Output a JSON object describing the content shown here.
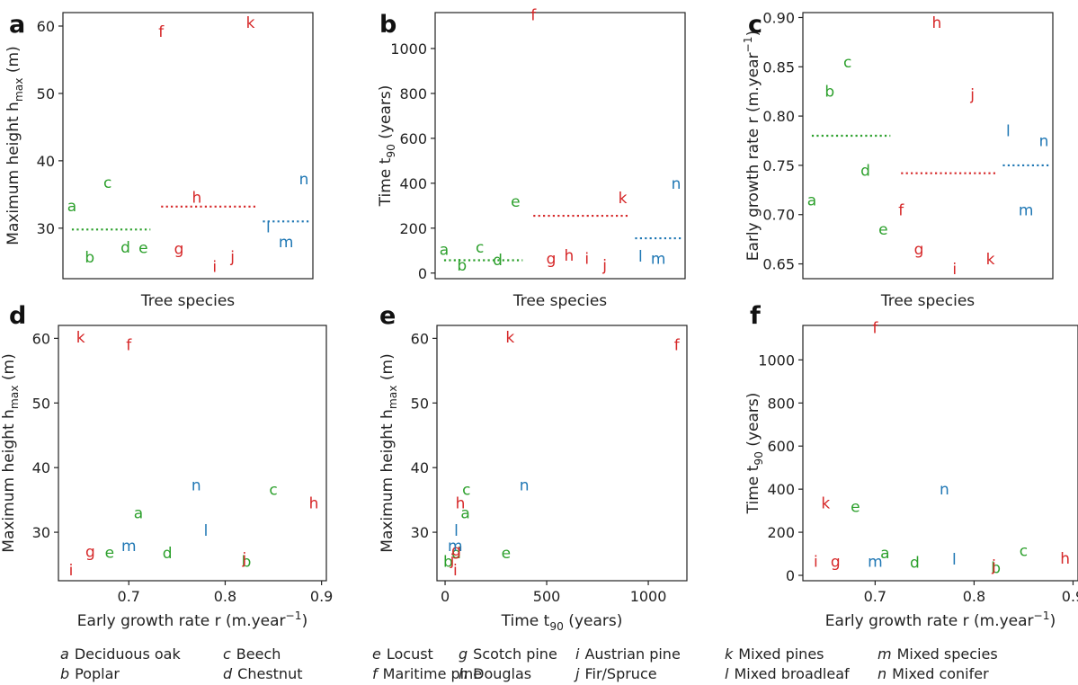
{
  "colors": {
    "broadleaf": "#2ca02c",
    "conifer": "#d62728",
    "mixed": "#1f77b4"
  },
  "species_groups": {
    "a": "broadleaf",
    "b": "broadleaf",
    "c": "broadleaf",
    "d": "broadleaf",
    "e": "broadleaf",
    "f": "conifer",
    "g": "conifer",
    "h": "conifer",
    "i": "conifer",
    "j": "conifer",
    "k": "conifer",
    "l": "mixed",
    "m": "mixed",
    "n": "mixed"
  },
  "legend": [
    {
      "letter": "a",
      "name": "Deciduous oak"
    },
    {
      "letter": "b",
      "name": "Poplar"
    },
    {
      "letter": "c",
      "name": "Beech"
    },
    {
      "letter": "d",
      "name": "Chestnut"
    },
    {
      "letter": "e",
      "name": "Locust"
    },
    {
      "letter": "f",
      "name": "Maritime pine"
    },
    {
      "letter": "g",
      "name": "Scotch pine"
    },
    {
      "letter": "h",
      "name": "Douglas"
    },
    {
      "letter": "i",
      "name": "Austrian pine"
    },
    {
      "letter": "j",
      "name": "Fir/Spruce"
    },
    {
      "letter": "k",
      "name": "Mixed pines"
    },
    {
      "letter": "l",
      "name": "Mixed broadleaf"
    },
    {
      "letter": "m",
      "name": "Mixed species"
    },
    {
      "letter": "n",
      "name": "Mixed conifer"
    }
  ],
  "chart_data": [
    {
      "panel": "a",
      "type": "scatter",
      "xlabel": "Tree species",
      "ylabel_parts": [
        "Maximum height h",
        "max",
        " (m)"
      ],
      "ylim": [
        22.5,
        62
      ],
      "yticks": [
        30,
        40,
        50,
        60
      ],
      "xticks": [],
      "points": [
        {
          "label": "a",
          "x": 1,
          "y": 33.3
        },
        {
          "label": "b",
          "x": 2,
          "y": 25.7
        },
        {
          "label": "c",
          "x": 3,
          "y": 36.8
        },
        {
          "label": "d",
          "x": 4,
          "y": 27.2
        },
        {
          "label": "e",
          "x": 5,
          "y": 27.1
        },
        {
          "label": "f",
          "x": 6,
          "y": 59.2
        },
        {
          "label": "g",
          "x": 7,
          "y": 27.0
        },
        {
          "label": "h",
          "x": 8,
          "y": 34.6
        },
        {
          "label": "i",
          "x": 9,
          "y": 24.3
        },
        {
          "label": "j",
          "x": 10,
          "y": 25.8
        },
        {
          "label": "k",
          "x": 11,
          "y": 60.5
        },
        {
          "label": "l",
          "x": 12,
          "y": 30.2
        },
        {
          "label": "m",
          "x": 13,
          "y": 28.0
        },
        {
          "label": "n",
          "x": 14,
          "y": 37.3
        }
      ],
      "means": [
        {
          "group": "broadleaf",
          "value": 29.8,
          "x_from": 1,
          "x_to": 5.4
        },
        {
          "group": "conifer",
          "value": 33.2,
          "x_from": 6,
          "x_to": 11.3
        },
        {
          "group": "mixed",
          "value": 31.0,
          "x_from": 11.7,
          "x_to": 14.3
        }
      ]
    },
    {
      "panel": "b",
      "type": "scatter",
      "xlabel": "Tree species",
      "ylabel_parts": [
        "Time t",
        "90",
        " (years)"
      ],
      "ylim": [
        -25,
        1160
      ],
      "yticks": [
        0,
        200,
        400,
        600,
        800,
        1000
      ],
      "xticks": [],
      "points": [
        {
          "label": "a",
          "x": 1,
          "y": 105
        },
        {
          "label": "b",
          "x": 2,
          "y": 35
        },
        {
          "label": "c",
          "x": 3,
          "y": 115
        },
        {
          "label": "d",
          "x": 4,
          "y": 60
        },
        {
          "label": "e",
          "x": 5,
          "y": 320
        },
        {
          "label": "f",
          "x": 6,
          "y": 1150
        },
        {
          "label": "g",
          "x": 7,
          "y": 65
        },
        {
          "label": "h",
          "x": 8,
          "y": 80
        },
        {
          "label": "i",
          "x": 9,
          "y": 65
        },
        {
          "label": "j",
          "x": 10,
          "y": 35
        },
        {
          "label": "k",
          "x": 11,
          "y": 335
        },
        {
          "label": "l",
          "x": 12,
          "y": 75
        },
        {
          "label": "m",
          "x": 13,
          "y": 65
        },
        {
          "label": "n",
          "x": 14,
          "y": 400
        }
      ],
      "means": [
        {
          "group": "broadleaf",
          "value": 57,
          "x_from": 1,
          "x_to": 5.4
        },
        {
          "group": "conifer",
          "value": 255,
          "x_from": 6,
          "x_to": 11.3
        },
        {
          "group": "mixed",
          "value": 155,
          "x_from": 11.7,
          "x_to": 14.3
        }
      ]
    },
    {
      "panel": "c",
      "type": "scatter",
      "xlabel": "Tree species",
      "ylabel_parts": [
        "Early growth rate r (m.year",
        "−1",
        ")"
      ],
      "ylim": [
        0.635,
        0.905
      ],
      "yticks": [
        0.65,
        0.7,
        0.75,
        0.8,
        0.85,
        0.9
      ],
      "ytick_decimals": 2,
      "xticks": [],
      "points": [
        {
          "label": "a",
          "x": 1,
          "y": 0.715
        },
        {
          "label": "b",
          "x": 2,
          "y": 0.825
        },
        {
          "label": "c",
          "x": 3,
          "y": 0.855
        },
        {
          "label": "d",
          "x": 4,
          "y": 0.745
        },
        {
          "label": "e",
          "x": 5,
          "y": 0.685
        },
        {
          "label": "f",
          "x": 6,
          "y": 0.705
        },
        {
          "label": "g",
          "x": 7,
          "y": 0.665
        },
        {
          "label": "h",
          "x": 8,
          "y": 0.895
        },
        {
          "label": "i",
          "x": 9,
          "y": 0.645
        },
        {
          "label": "j",
          "x": 10,
          "y": 0.822
        },
        {
          "label": "k",
          "x": 11,
          "y": 0.655
        },
        {
          "label": "l",
          "x": 12,
          "y": 0.785
        },
        {
          "label": "m",
          "x": 13,
          "y": 0.705
        },
        {
          "label": "n",
          "x": 14,
          "y": 0.775
        }
      ],
      "means": [
        {
          "group": "broadleaf",
          "value": 0.78,
          "x_from": 1,
          "x_to": 5.4
        },
        {
          "group": "conifer",
          "value": 0.742,
          "x_from": 6,
          "x_to": 11.3
        },
        {
          "group": "mixed",
          "value": 0.75,
          "x_from": 11.7,
          "x_to": 14.3
        }
      ]
    },
    {
      "panel": "d",
      "type": "scatter",
      "xlabel_parts": [
        "Early growth rate r (m.year",
        "−1",
        ")"
      ],
      "ylabel_parts": [
        "Maximum height h",
        "max",
        " (m)"
      ],
      "xlim": [
        0.627,
        0.905
      ],
      "xticks": [
        0.7,
        0.8,
        0.9
      ],
      "xtick_decimals": 1,
      "ylim": [
        22.5,
        62
      ],
      "yticks": [
        30,
        40,
        50,
        60
      ],
      "points": [
        {
          "label": "a",
          "x": 0.71,
          "y": 33.0
        },
        {
          "label": "b",
          "x": 0.822,
          "y": 25.5
        },
        {
          "label": "c",
          "x": 0.85,
          "y": 36.6
        },
        {
          "label": "d",
          "x": 0.74,
          "y": 26.8
        },
        {
          "label": "e",
          "x": 0.68,
          "y": 26.9
        },
        {
          "label": "f",
          "x": 0.7,
          "y": 59.0
        },
        {
          "label": "g",
          "x": 0.66,
          "y": 27.0
        },
        {
          "label": "h",
          "x": 0.892,
          "y": 34.5
        },
        {
          "label": "i",
          "x": 0.64,
          "y": 24.2
        },
        {
          "label": "j",
          "x": 0.82,
          "y": 26.0
        },
        {
          "label": "k",
          "x": 0.65,
          "y": 60.2
        },
        {
          "label": "l",
          "x": 0.78,
          "y": 30.3
        },
        {
          "label": "m",
          "x": 0.7,
          "y": 27.9
        },
        {
          "label": "n",
          "x": 0.77,
          "y": 37.3
        }
      ]
    },
    {
      "panel": "e",
      "type": "scatter",
      "xlabel_parts": [
        "Time t",
        "90",
        " (years)"
      ],
      "ylabel_parts": [
        "Maximum height h",
        "max",
        " (m)"
      ],
      "xlim": [
        -40,
        1190
      ],
      "xticks": [
        0,
        500,
        1000
      ],
      "ylim": [
        22.5,
        62
      ],
      "yticks": [
        30,
        40,
        50,
        60
      ],
      "points": [
        {
          "label": "a",
          "x": 100,
          "y": 33.0
        },
        {
          "label": "b",
          "x": 15,
          "y": 25.5
        },
        {
          "label": "c",
          "x": 105,
          "y": 36.6
        },
        {
          "label": "d",
          "x": 55,
          "y": 26.8
        },
        {
          "label": "e",
          "x": 300,
          "y": 26.8
        },
        {
          "label": "f",
          "x": 1140,
          "y": 59.0
        },
        {
          "label": "g",
          "x": 55,
          "y": 27.2
        },
        {
          "label": "h",
          "x": 75,
          "y": 34.5
        },
        {
          "label": "i",
          "x": 50,
          "y": 24.2
        },
        {
          "label": "j",
          "x": 35,
          "y": 25.8
        },
        {
          "label": "k",
          "x": 320,
          "y": 60.2
        },
        {
          "label": "l",
          "x": 55,
          "y": 30.3
        },
        {
          "label": "m",
          "x": 50,
          "y": 27.9
        },
        {
          "label": "n",
          "x": 390,
          "y": 37.3
        }
      ]
    },
    {
      "panel": "f",
      "type": "scatter",
      "xlabel_parts": [
        "Early growth rate r (m.year",
        "−1",
        ")"
      ],
      "ylabel_parts": [
        "Time t",
        "90",
        " (years)"
      ],
      "xlim": [
        0.627,
        0.905
      ],
      "xticks": [
        0.7,
        0.8,
        0.9
      ],
      "xtick_decimals": 1,
      "ylim": [
        -25,
        1160
      ],
      "yticks": [
        0,
        200,
        400,
        600,
        800,
        1000
      ],
      "points": [
        {
          "label": "a",
          "x": 0.71,
          "y": 105
        },
        {
          "label": "b",
          "x": 0.822,
          "y": 35
        },
        {
          "label": "c",
          "x": 0.85,
          "y": 115
        },
        {
          "label": "d",
          "x": 0.74,
          "y": 60
        },
        {
          "label": "e",
          "x": 0.68,
          "y": 320
        },
        {
          "label": "f",
          "x": 0.7,
          "y": 1150
        },
        {
          "label": "g",
          "x": 0.66,
          "y": 65
        },
        {
          "label": "h",
          "x": 0.892,
          "y": 80
        },
        {
          "label": "i",
          "x": 0.64,
          "y": 65
        },
        {
          "label": "j",
          "x": 0.82,
          "y": 45
        },
        {
          "label": "k",
          "x": 0.65,
          "y": 335
        },
        {
          "label": "l",
          "x": 0.78,
          "y": 75
        },
        {
          "label": "m",
          "x": 0.7,
          "y": 65
        },
        {
          "label": "n",
          "x": 0.77,
          "y": 400
        }
      ]
    }
  ]
}
